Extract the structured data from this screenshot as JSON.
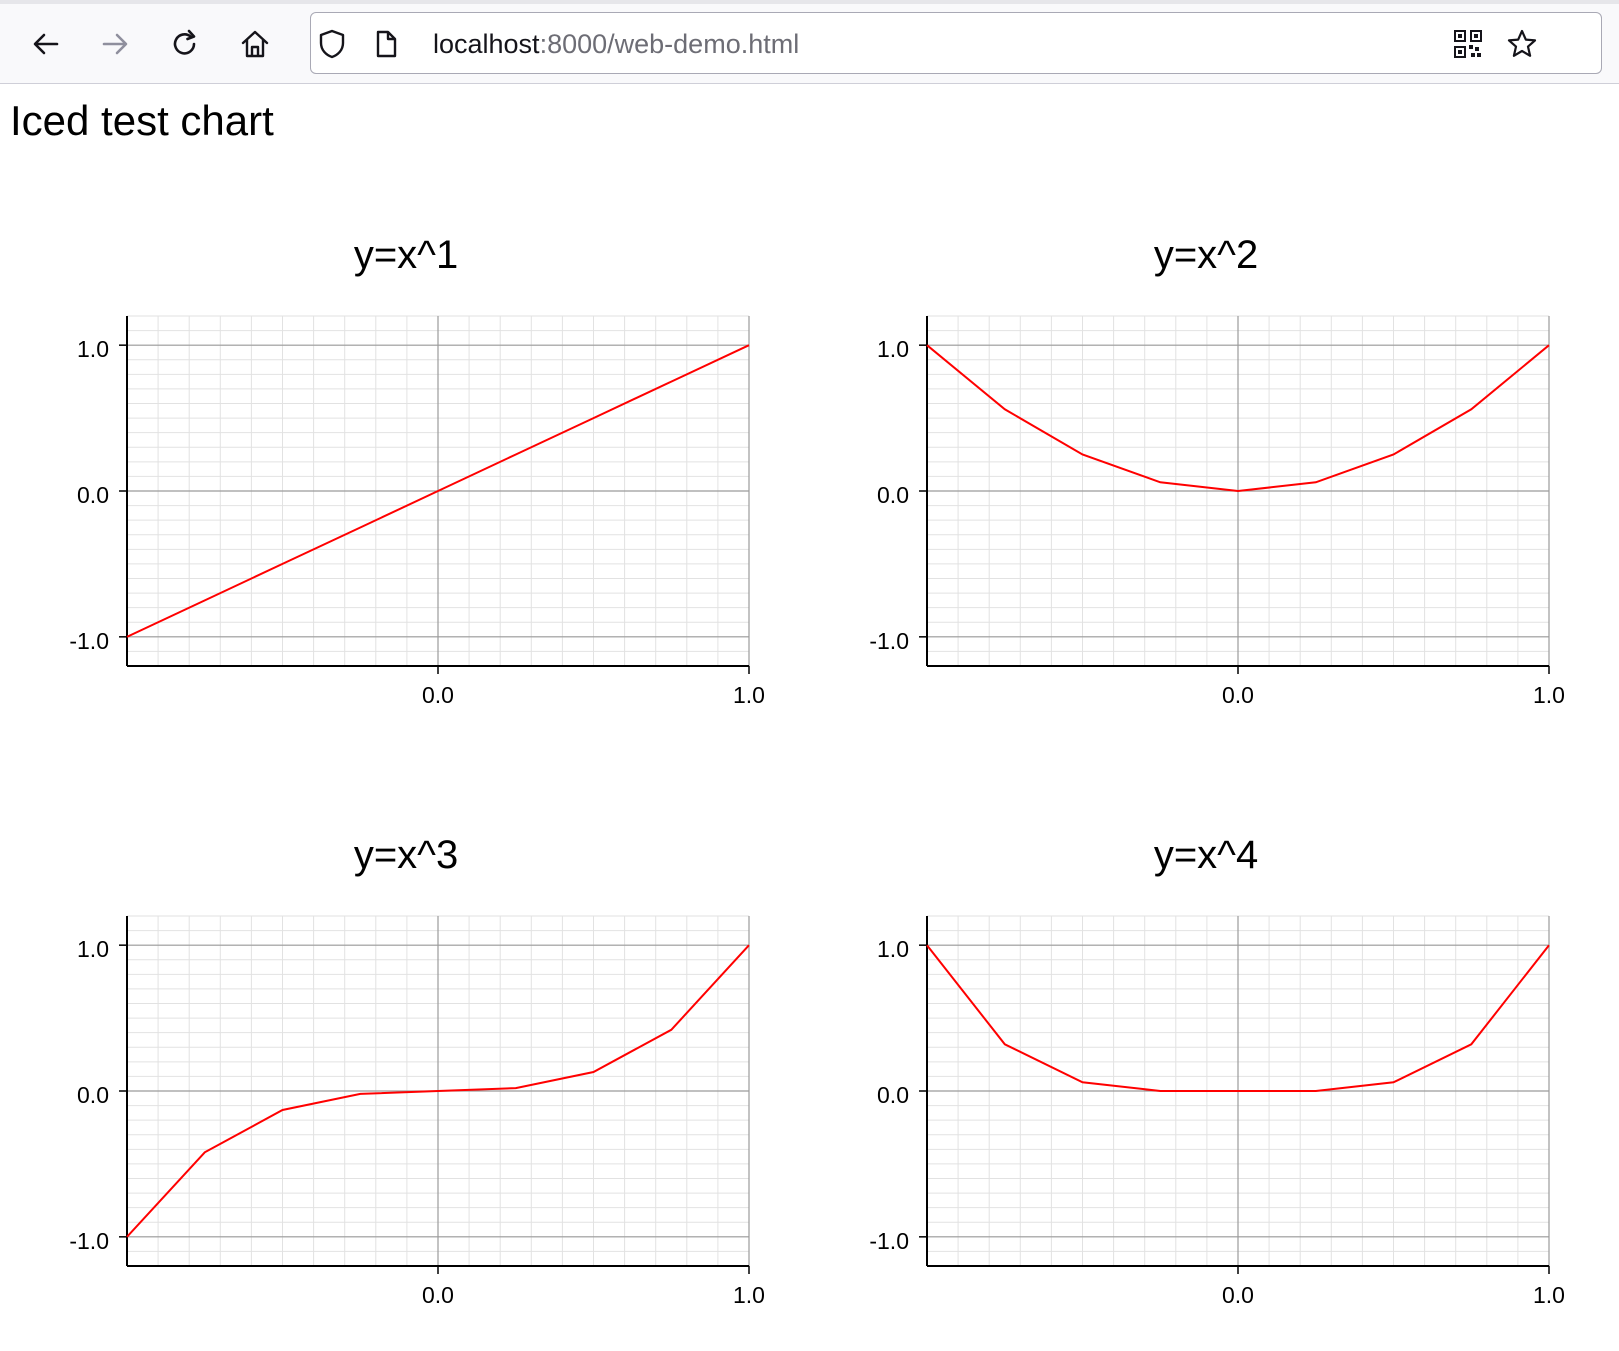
{
  "browser": {
    "url_host": "localhost",
    "url_rest": ":8000/web-demo.html",
    "icons": [
      "back-arrow-icon",
      "forward-arrow-icon",
      "reload-icon",
      "home-icon",
      "shield-icon",
      "page-icon",
      "qr-code-icon",
      "bookmark-star-icon"
    ]
  },
  "page": {
    "title": "Iced test chart"
  },
  "chart_data": [
    {
      "type": "line",
      "title": "y=x^1",
      "xlabel": "",
      "ylabel": "",
      "xlim": [
        -1,
        1
      ],
      "ylim": [
        -1.2,
        1.2
      ],
      "x_ticks": [
        0,
        1
      ],
      "x_tick_labels": [
        "0.0",
        "1.0"
      ],
      "y_ticks": [
        1,
        0,
        -1
      ],
      "y_tick_labels": [
        "1.0",
        "0.0",
        "-1.0"
      ],
      "grid": true,
      "line_color": "#ff0000",
      "series": [
        {
          "x": [
            -1,
            -0.75,
            -0.5,
            -0.25,
            0,
            0.25,
            0.5,
            0.75,
            1
          ],
          "y": [
            -1,
            -0.75,
            -0.5,
            -0.25,
            0,
            0.25,
            0.5,
            0.75,
            1
          ]
        }
      ]
    },
    {
      "type": "line",
      "title": "y=x^2",
      "xlabel": "",
      "ylabel": "",
      "xlim": [
        -1,
        1
      ],
      "ylim": [
        -1.2,
        1.2
      ],
      "x_ticks": [
        0,
        1
      ],
      "x_tick_labels": [
        "0.0",
        "1.0"
      ],
      "y_ticks": [
        1,
        0,
        -1
      ],
      "y_tick_labels": [
        "1.0",
        "0.0",
        "-1.0"
      ],
      "grid": true,
      "line_color": "#ff0000",
      "series": [
        {
          "x": [
            -1,
            -0.75,
            -0.5,
            -0.25,
            0,
            0.25,
            0.5,
            0.75,
            1
          ],
          "y": [
            1,
            0.56,
            0.25,
            0.06,
            0,
            0.06,
            0.25,
            0.56,
            1
          ]
        }
      ]
    },
    {
      "type": "line",
      "title": "y=x^3",
      "xlabel": "",
      "ylabel": "",
      "xlim": [
        -1,
        1
      ],
      "ylim": [
        -1.2,
        1.2
      ],
      "x_ticks": [
        0,
        1
      ],
      "x_tick_labels": [
        "0.0",
        "1.0"
      ],
      "y_ticks": [
        1,
        0,
        -1
      ],
      "y_tick_labels": [
        "1.0",
        "0.0",
        "-1.0"
      ],
      "grid": true,
      "line_color": "#ff0000",
      "series": [
        {
          "x": [
            -1,
            -0.75,
            -0.5,
            -0.25,
            0,
            0.25,
            0.5,
            0.75,
            1
          ],
          "y": [
            -1,
            -0.42,
            -0.13,
            -0.02,
            0,
            0.02,
            0.13,
            0.42,
            1
          ]
        }
      ]
    },
    {
      "type": "line",
      "title": "y=x^4",
      "xlabel": "",
      "ylabel": "",
      "xlim": [
        -1,
        1
      ],
      "ylim": [
        -1.2,
        1.2
      ],
      "x_ticks": [
        0,
        1
      ],
      "x_tick_labels": [
        "0.0",
        "1.0"
      ],
      "y_ticks": [
        1,
        0,
        -1
      ],
      "y_tick_labels": [
        "1.0",
        "0.0",
        "-1.0"
      ],
      "grid": true,
      "line_color": "#ff0000",
      "series": [
        {
          "x": [
            -1,
            -0.75,
            -0.5,
            -0.25,
            0,
            0.25,
            0.5,
            0.75,
            1
          ],
          "y": [
            1,
            0.32,
            0.06,
            0,
            0,
            0,
            0.06,
            0.32,
            1
          ]
        }
      ]
    }
  ]
}
